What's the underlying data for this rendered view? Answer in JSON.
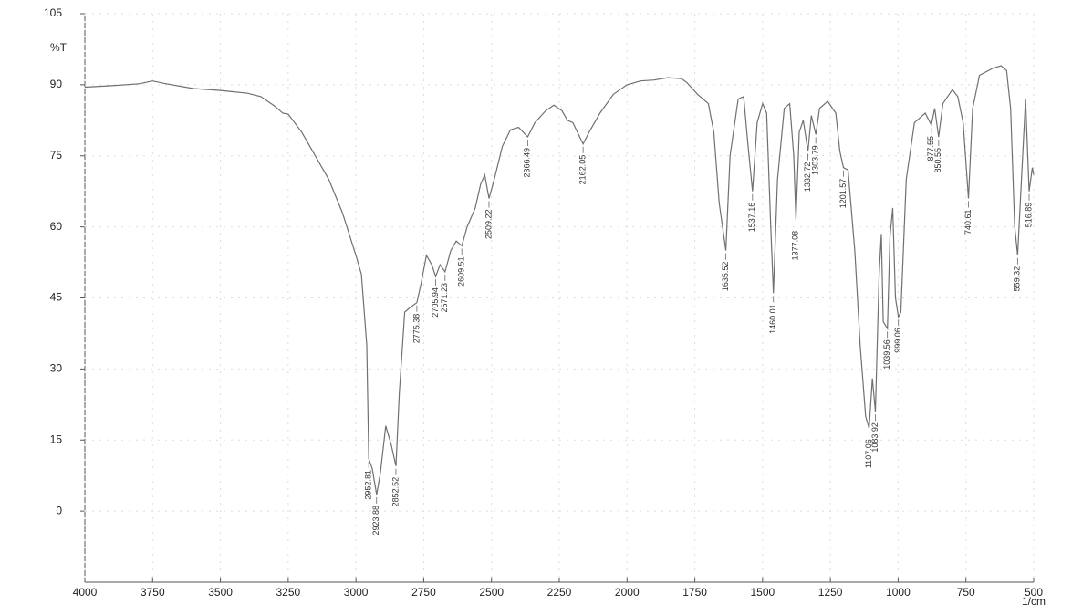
{
  "chart_data": {
    "type": "line",
    "ylabel": "%T",
    "xlabel": "1/cm",
    "xlim": [
      4000,
      500
    ],
    "ylim": [
      -15,
      105
    ],
    "xticks": [
      4000,
      3750,
      3500,
      3250,
      3000,
      2750,
      2500,
      2250,
      2000,
      1750,
      1500,
      1250,
      1000,
      750,
      500
    ],
    "yticks": [
      0,
      15,
      30,
      45,
      60,
      75,
      90,
      105
    ],
    "grid": true,
    "x": [
      4000,
      3900,
      3800,
      3750,
      3700,
      3600,
      3500,
      3400,
      3350,
      3300,
      3270,
      3250,
      3200,
      3150,
      3100,
      3050,
      3000,
      2980,
      2960,
      2952.81,
      2940,
      2923.88,
      2910,
      2890,
      2870,
      2852.52,
      2840,
      2820,
      2800,
      2775.38,
      2760,
      2740,
      2720,
      2705.94,
      2690,
      2671.23,
      2650,
      2630,
      2609.51,
      2590,
      2560,
      2540,
      2525,
      2509.22,
      2490,
      2460,
      2430,
      2400,
      2366.49,
      2340,
      2300,
      2270,
      2240,
      2220,
      2200,
      2162.05,
      2140,
      2100,
      2050,
      2000,
      1950,
      1900,
      1850,
      1800,
      1780,
      1740,
      1700,
      1680,
      1660,
      1635.52,
      1620,
      1590,
      1570,
      1555,
      1537.16,
      1520,
      1500,
      1485,
      1470,
      1460.01,
      1445,
      1420,
      1400,
      1385,
      1377.08,
      1365,
      1350,
      1332.72,
      1320,
      1303.79,
      1290,
      1260,
      1230,
      1215,
      1201.57,
      1185,
      1160,
      1140,
      1120,
      1107.06,
      1095,
      1083.92,
      1070,
      1062,
      1055,
      1039.56,
      1030,
      1020,
      1010,
      999.06,
      990,
      970,
      940,
      900,
      877.55,
      865,
      850.55,
      835,
      800,
      780,
      760,
      740.61,
      725,
      700,
      650,
      620,
      600,
      585,
      570,
      559.32,
      545,
      530,
      516.89,
      505,
      500
    ],
    "series": [
      {
        "color": "#707070",
        "values": [
          89.5,
          89.8,
          90.2,
          90.8,
          90.2,
          89.2,
          88.8,
          88.2,
          87.5,
          85.5,
          84,
          83.8,
          80,
          75,
          70,
          63,
          54,
          50,
          35,
          11,
          9,
          3.5,
          8,
          18,
          14,
          9.5,
          25,
          42,
          43,
          44,
          48,
          54,
          52,
          49.5,
          52,
          50.5,
          55,
          57,
          56,
          60,
          64,
          69,
          71,
          66,
          70,
          77,
          80.5,
          81,
          79,
          82,
          84.5,
          85.7,
          84.5,
          82.5,
          82,
          77.5,
          80,
          84,
          88,
          90,
          90.8,
          91,
          91.5,
          91.3,
          90.5,
          88,
          86,
          80,
          65,
          55,
          75,
          87,
          87.5,
          78,
          67.5,
          82,
          86,
          84,
          60,
          46,
          70,
          85,
          86,
          75,
          61.5,
          80,
          82.5,
          76,
          83.5,
          79.5,
          85,
          86.5,
          84,
          76,
          72.5,
          72,
          55,
          35,
          20,
          17.5,
          28,
          21,
          50,
          58.5,
          40,
          38.5,
          58,
          64,
          45,
          41,
          42,
          70,
          82,
          84,
          81.5,
          85,
          79,
          86,
          89,
          87.5,
          82,
          66,
          85,
          92,
          93.5,
          94,
          93,
          85,
          60,
          54,
          70,
          87,
          67.5,
          72.5,
          71
        ]
      }
    ],
    "peaks": [
      {
        "x": 2952.81,
        "y": 11
      },
      {
        "x": 2923.88,
        "y": 3.5
      },
      {
        "x": 2852.52,
        "y": 9.5
      },
      {
        "x": 2775.38,
        "y": 44
      },
      {
        "x": 2705.94,
        "y": 49.5
      },
      {
        "x": 2671.23,
        "y": 50.5
      },
      {
        "x": 2609.51,
        "y": 56
      },
      {
        "x": 2509.22,
        "y": 66
      },
      {
        "x": 2366.49,
        "y": 79
      },
      {
        "x": 2162.05,
        "y": 77.5
      },
      {
        "x": 1635.52,
        "y": 55
      },
      {
        "x": 1537.16,
        "y": 67.5
      },
      {
        "x": 1460.01,
        "y": 46
      },
      {
        "x": 1377.08,
        "y": 61.5
      },
      {
        "x": 1332.72,
        "y": 76
      },
      {
        "x": 1303.79,
        "y": 79.5
      },
      {
        "x": 1201.57,
        "y": 72.5
      },
      {
        "x": 1107.06,
        "y": 17.5
      },
      {
        "x": 1083.92,
        "y": 21
      },
      {
        "x": 1039.56,
        "y": 38.5
      },
      {
        "x": 999.06,
        "y": 41
      },
      {
        "x": 877.55,
        "y": 81.5
      },
      {
        "x": 850.55,
        "y": 79
      },
      {
        "x": 740.61,
        "y": 66
      },
      {
        "x": 559.32,
        "y": 54
      },
      {
        "x": 516.89,
        "y": 67.5
      }
    ]
  }
}
